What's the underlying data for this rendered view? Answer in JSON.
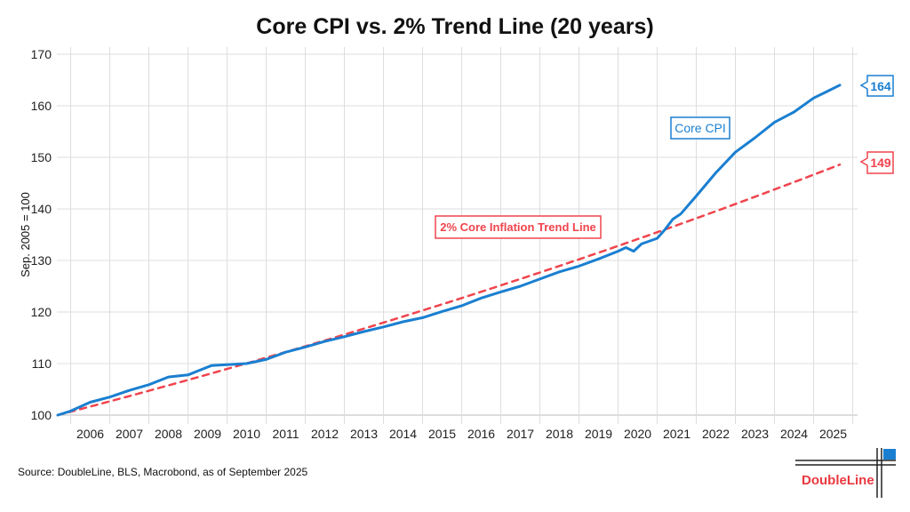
{
  "chart_data": {
    "type": "line",
    "title": "Core CPI vs. 2% Trend Line (20 years)",
    "xlabel": "",
    "ylabel": "Sep. 2005 = 100",
    "ylim": [
      100,
      170
    ],
    "yticks": [
      100,
      110,
      120,
      130,
      140,
      150,
      160,
      170
    ],
    "xlim": [
      2005.67,
      2025.9
    ],
    "xtick_labels": [
      "2006",
      "2007",
      "2008",
      "2009",
      "2010",
      "2011",
      "2012",
      "2013",
      "2014",
      "2015",
      "2016",
      "2017",
      "2018",
      "2019",
      "2020",
      "2021",
      "2022",
      "2023",
      "2024",
      "2025"
    ],
    "grid": true,
    "series": [
      {
        "name": "Core CPI",
        "color": "#1a7fd1",
        "style": "solid",
        "end_label": "164",
        "x": [
          2005.67,
          2006.0,
          2006.5,
          2007.0,
          2007.5,
          2008.0,
          2008.5,
          2009.0,
          2009.3,
          2009.6,
          2010.0,
          2010.5,
          2011.0,
          2011.5,
          2012.0,
          2012.5,
          2013.0,
          2013.5,
          2014.0,
          2014.5,
          2015.0,
          2015.5,
          2016.0,
          2016.5,
          2017.0,
          2017.5,
          2018.0,
          2018.5,
          2019.0,
          2019.5,
          2020.0,
          2020.2,
          2020.4,
          2020.6,
          2021.0,
          2021.2,
          2021.4,
          2021.6,
          2022.0,
          2022.5,
          2023.0,
          2023.5,
          2024.0,
          2024.5,
          2025.0,
          2025.3,
          2025.67
        ],
        "values": [
          100,
          100.8,
          102.5,
          103.5,
          104.8,
          105.9,
          107.4,
          107.8,
          108.7,
          109.6,
          109.8,
          110.0,
          110.8,
          112.2,
          113.2,
          114.3,
          115.2,
          116.2,
          117.1,
          118.1,
          118.9,
          120.1,
          121.2,
          122.7,
          123.9,
          125.0,
          126.4,
          127.8,
          128.9,
          130.3,
          131.8,
          132.5,
          131.8,
          133.2,
          134.3,
          136.0,
          138.0,
          139.0,
          142.5,
          147.0,
          151.0,
          153.8,
          156.8,
          158.8,
          161.5,
          162.6,
          164.0
        ]
      },
      {
        "name": "2% Core Inflation Trend Line",
        "color": "#f0444d",
        "style": "dashed",
        "end_label": "149",
        "x": [
          2005.67,
          2006.67,
          2007.67,
          2008.67,
          2009.67,
          2010.67,
          2011.67,
          2012.67,
          2013.67,
          2014.67,
          2015.67,
          2016.67,
          2017.67,
          2018.67,
          2019.67,
          2020.67,
          2021.67,
          2022.67,
          2023.67,
          2024.67,
          2025.67
        ],
        "values": [
          100,
          102,
          104.04,
          106.12,
          108.24,
          110.41,
          112.62,
          114.87,
          117.17,
          119.51,
          121.9,
          124.34,
          126.82,
          129.36,
          131.95,
          134.59,
          137.28,
          140.02,
          142.82,
          145.68,
          148.59
        ]
      }
    ],
    "annotations": [
      "Core CPI",
      "2% Core Inflation Trend Line"
    ]
  },
  "source": "Source: DoubleLine, BLS, Macrobond, as of September 2025",
  "logo": {
    "text": "DoubleLine",
    "color": "#e8393f",
    "accent": "#1a7fd1"
  }
}
